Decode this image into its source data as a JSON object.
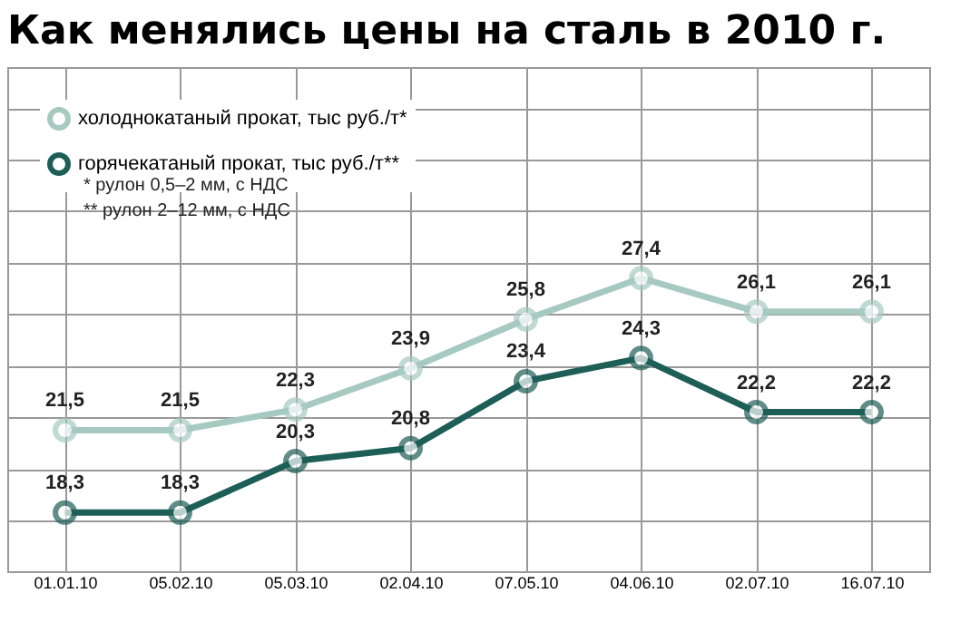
{
  "chart_data": {
    "type": "line",
    "title": "Как менялись цены на сталь в 2010 г.",
    "categories": [
      "01.01.10",
      "05.02.10",
      "05.03.10",
      "02.04.10",
      "07.05.10",
      "04.06.10",
      "02.07.10",
      "16.07.10"
    ],
    "series": [
      {
        "name": "холоднокатаный прокат, тыс руб./т*",
        "color": "#a6c9c1",
        "values": [
          21.5,
          21.5,
          22.3,
          23.9,
          25.8,
          27.4,
          26.1,
          26.1
        ],
        "value_labels": [
          "21,5",
          "21,5",
          "22,3",
          "23,9",
          "25,8",
          "27,4",
          "26,1",
          "26,1"
        ]
      },
      {
        "name": "горячекатаный прокат, тыс руб./т**",
        "color": "#1d5e57",
        "values": [
          18.3,
          18.3,
          20.3,
          20.8,
          23.4,
          24.3,
          22.2,
          22.2
        ],
        "value_labels": [
          "18,3",
          "18,3",
          "20,3",
          "20,8",
          "23,4",
          "24,3",
          "22,2",
          "22,2"
        ]
      }
    ],
    "annotations": [
      "* рулон 0,5–2 мм, с НДС",
      "** рулон 2–12 мм, с НДС"
    ],
    "grid": true,
    "legend": "top left",
    "marker": "circle",
    "line_style": "solid"
  }
}
